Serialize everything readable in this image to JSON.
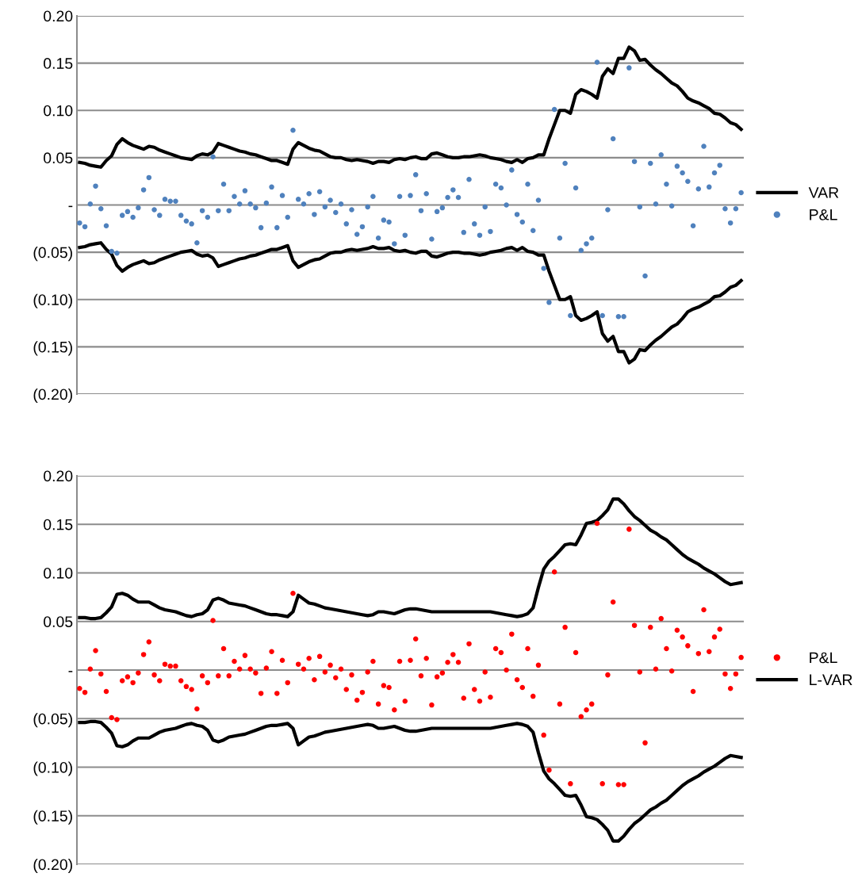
{
  "chart_data": [
    {
      "type": "scatter",
      "categories": [
        null,
        null,
        null,
        null,
        null,
        null,
        null,
        null,
        null,
        null,
        null,
        null,
        null,
        null,
        null,
        null,
        null,
        null,
        null,
        null,
        null,
        null,
        null,
        null,
        null,
        null,
        null,
        null,
        null,
        null,
        null,
        null,
        null,
        null,
        null,
        null,
        null,
        null,
        null,
        null,
        null,
        null,
        null,
        null,
        null,
        null,
        null,
        null,
        null,
        null,
        null,
        null,
        null,
        null,
        null,
        null,
        null,
        null,
        null,
        null,
        null,
        null,
        null,
        null,
        null,
        null,
        null,
        null,
        null,
        null,
        null,
        null,
        null,
        null,
        null,
        null,
        null,
        null,
        null,
        null,
        null,
        null,
        null,
        null,
        null,
        null,
        null,
        null,
        null,
        null,
        null,
        null,
        null,
        null,
        null,
        null,
        null,
        null,
        null,
        null,
        null,
        null,
        null,
        null,
        null,
        null,
        null,
        null,
        null,
        null,
        null,
        null,
        null,
        null,
        null,
        null,
        null,
        null,
        null,
        null,
        null,
        null,
        null,
        null,
        null
      ],
      "ylim": [
        -0.2,
        0.2
      ],
      "yticks": [
        {
          "value": -0.2,
          "label": "(0.20)"
        },
        {
          "value": -0.15,
          "label": "(0.15)"
        },
        {
          "value": -0.1,
          "label": "(0.10)"
        },
        {
          "value": -0.05,
          "label": "(0.05)"
        },
        {
          "value": 0,
          "label": "-"
        },
        {
          "value": 0.05,
          "label": "0.05"
        },
        {
          "value": 0.1,
          "label": "0.10"
        },
        {
          "value": 0.15,
          "label": "0.15"
        },
        {
          "value": 0.2,
          "label": "0.20"
        }
      ],
      "grid": "y",
      "legend": "right",
      "tick_labels": "y",
      "marker": "circle",
      "series": [
        {
          "type": "line",
          "name": "VAR",
          "color": "#000000",
          "line_style": "solid",
          "marker": "none",
          "values": [
            0.045,
            0.044,
            0.042,
            0.041,
            0.04,
            0.047,
            0.052,
            0.064,
            0.07,
            0.066,
            0.063,
            0.061,
            0.059,
            0.062,
            0.061,
            0.058,
            0.056,
            0.054,
            0.052,
            0.05,
            0.049,
            0.048,
            0.052,
            0.054,
            0.053,
            0.056,
            0.065,
            0.063,
            0.061,
            0.059,
            0.057,
            0.056,
            0.054,
            0.053,
            0.051,
            0.049,
            0.047,
            0.047,
            0.045,
            0.043,
            0.059,
            0.066,
            0.063,
            0.06,
            0.058,
            0.057,
            0.054,
            0.051,
            0.05,
            0.05,
            0.048,
            0.047,
            0.048,
            0.047,
            0.046,
            0.044,
            0.046,
            0.046,
            0.045,
            0.048,
            0.049,
            0.048,
            0.05,
            0.051,
            0.049,
            0.049,
            0.054,
            0.055,
            0.053,
            0.051,
            0.05,
            0.05,
            0.051,
            0.051,
            0.052,
            0.053,
            0.052,
            0.05,
            0.049,
            0.048,
            0.046,
            0.045,
            0.048,
            0.045,
            0.049,
            0.05,
            0.053,
            0.053,
            0.07,
            0.085,
            0.1,
            0.1,
            0.097,
            0.117,
            0.122,
            0.12,
            0.117,
            0.113,
            0.136,
            0.144,
            0.139,
            0.155,
            0.155,
            0.167,
            0.163,
            0.153,
            0.154,
            0.148,
            0.143,
            0.139,
            0.134,
            0.129,
            0.126,
            0.12,
            0.113,
            0.11,
            0.108,
            0.105,
            0.102,
            0.097,
            0.096,
            0.092,
            0.087,
            0.085,
            0.08
          ]
        },
        {
          "name": "P&L",
          "color": "#4f81bd",
          "values": [
            -0.019,
            -0.023,
            0.001,
            0.02,
            -0.004,
            -0.022,
            -0.049,
            -0.051,
            -0.011,
            -0.007,
            -0.013,
            -0.003,
            0.016,
            0.029,
            -0.005,
            -0.011,
            0.006,
            0.004,
            0.004,
            -0.011,
            -0.017,
            -0.02,
            -0.04,
            -0.006,
            -0.013,
            0.051,
            -0.006,
            0.022,
            -0.006,
            0.009,
            0.001,
            0.015,
            0.001,
            -0.003,
            -0.024,
            0.002,
            0.019,
            -0.024,
            0.01,
            -0.013,
            0.079,
            0.006,
            0.001,
            0.012,
            -0.01,
            0.014,
            -0.002,
            0.005,
            -0.008,
            0.001,
            -0.02,
            -0.005,
            -0.031,
            -0.023,
            -0.002,
            0.009,
            -0.035,
            -0.016,
            -0.018,
            -0.041,
            0.009,
            -0.032,
            0.01,
            0.032,
            -0.006,
            0.012,
            -0.036,
            -0.007,
            -0.003,
            0.008,
            0.016,
            0.008,
            -0.029,
            0.027,
            -0.02,
            -0.032,
            -0.002,
            -0.028,
            0.022,
            0.018,
            0.0,
            0.037,
            -0.01,
            -0.018,
            0.022,
            -0.027,
            0.005,
            -0.067,
            -0.103,
            0.101,
            -0.035,
            0.044,
            -0.117,
            0.018,
            -0.048,
            -0.041,
            -0.035,
            0.151,
            -0.117,
            -0.005,
            0.07,
            -0.118,
            -0.118,
            0.145,
            0.046,
            -0.002,
            -0.075,
            0.044,
            0.001,
            0.053,
            0.022,
            -0.001,
            0.041,
            0.034,
            0.025,
            -0.022,
            0.017,
            0.062,
            0.019,
            0.034,
            0.042,
            -0.004,
            -0.019,
            -0.004,
            0.013
          ]
        },
        {
          "type": "line",
          "color": "#000000",
          "line_style": "solid",
          "marker": "none",
          "values": [
            -0.045,
            -0.044,
            -0.042,
            -0.041,
            -0.04,
            -0.047,
            -0.052,
            -0.064,
            -0.07,
            -0.066,
            -0.063,
            -0.061,
            -0.059,
            -0.062,
            -0.061,
            -0.058,
            -0.056,
            -0.054,
            -0.052,
            -0.05,
            -0.049,
            -0.048,
            -0.052,
            -0.054,
            -0.053,
            -0.056,
            -0.065,
            -0.063,
            -0.061,
            -0.059,
            -0.057,
            -0.056,
            -0.054,
            -0.053,
            -0.051,
            -0.049,
            -0.047,
            -0.047,
            -0.045,
            -0.043,
            -0.059,
            -0.066,
            -0.063,
            -0.06,
            -0.058,
            -0.057,
            -0.054,
            -0.051,
            -0.05,
            -0.05,
            -0.048,
            -0.047,
            -0.048,
            -0.047,
            -0.046,
            -0.044,
            -0.046,
            -0.046,
            -0.045,
            -0.048,
            -0.049,
            -0.048,
            -0.05,
            -0.051,
            -0.049,
            -0.049,
            -0.054,
            -0.055,
            -0.053,
            -0.051,
            -0.05,
            -0.05,
            -0.051,
            -0.051,
            -0.052,
            -0.053,
            -0.052,
            -0.05,
            -0.049,
            -0.048,
            -0.046,
            -0.045,
            -0.048,
            -0.045,
            -0.049,
            -0.05,
            -0.053,
            -0.053,
            -0.07,
            -0.085,
            -0.1,
            -0.1,
            -0.097,
            -0.117,
            -0.122,
            -0.12,
            -0.117,
            -0.113,
            -0.136,
            -0.144,
            -0.139,
            -0.155,
            -0.155,
            -0.167,
            -0.163,
            -0.153,
            -0.154,
            -0.148,
            -0.143,
            -0.139,
            -0.134,
            -0.129,
            -0.126,
            -0.12,
            -0.113,
            -0.11,
            -0.108,
            -0.105,
            -0.102,
            -0.097,
            -0.096,
            -0.092,
            -0.087,
            -0.085,
            -0.08
          ]
        }
      ]
    },
    {
      "type": "scatter",
      "categories": [
        null,
        null,
        null,
        null,
        null,
        null,
        null,
        null,
        null,
        null,
        null,
        null,
        null,
        null,
        null,
        null,
        null,
        null,
        null,
        null,
        null,
        null,
        null,
        null,
        null,
        null,
        null,
        null,
        null,
        null,
        null,
        null,
        null,
        null,
        null,
        null,
        null,
        null,
        null,
        null,
        null,
        null,
        null,
        null,
        null,
        null,
        null,
        null,
        null,
        null,
        null,
        null,
        null,
        null,
        null,
        null,
        null,
        null,
        null,
        null,
        null,
        null,
        null,
        null,
        null,
        null,
        null,
        null,
        null,
        null,
        null,
        null,
        null,
        null,
        null,
        null,
        null,
        null,
        null,
        null,
        null,
        null,
        null,
        null,
        null,
        null,
        null,
        null,
        null,
        null,
        null,
        null,
        null,
        null,
        null,
        null,
        null,
        null,
        null,
        null,
        null,
        null,
        null,
        null,
        null,
        null,
        null,
        null,
        null,
        null,
        null,
        null,
        null,
        null,
        null,
        null,
        null,
        null,
        null,
        null,
        null,
        null,
        null,
        null,
        null
      ],
      "ylim": [
        -0.2,
        0.2
      ],
      "yticks": [
        {
          "value": -0.2,
          "label": "(0.20)"
        },
        {
          "value": -0.15,
          "label": "(0.15)"
        },
        {
          "value": -0.1,
          "label": "(0.10)"
        },
        {
          "value": -0.05,
          "label": "(0.05)"
        },
        {
          "value": 0,
          "label": "-"
        },
        {
          "value": 0.05,
          "label": "0.05"
        },
        {
          "value": 0.1,
          "label": "0.10"
        },
        {
          "value": 0.15,
          "label": "0.15"
        },
        {
          "value": 0.2,
          "label": "0.20"
        }
      ],
      "grid": "y",
      "legend": "right",
      "tick_labels": "y",
      "marker": "circle",
      "series": [
        {
          "name": "P&L",
          "color": "#ff0000",
          "values": [
            -0.019,
            -0.023,
            0.001,
            0.02,
            -0.004,
            -0.022,
            -0.049,
            -0.051,
            -0.011,
            -0.007,
            -0.013,
            -0.003,
            0.016,
            0.029,
            -0.005,
            -0.011,
            0.006,
            0.004,
            0.004,
            -0.011,
            -0.017,
            -0.02,
            -0.04,
            -0.006,
            -0.013,
            0.051,
            -0.006,
            0.022,
            -0.006,
            0.009,
            0.001,
            0.015,
            0.001,
            -0.003,
            -0.024,
            0.002,
            0.019,
            -0.024,
            0.01,
            -0.013,
            0.079,
            0.006,
            0.001,
            0.012,
            -0.01,
            0.014,
            -0.002,
            0.005,
            -0.008,
            0.001,
            -0.02,
            -0.005,
            -0.031,
            -0.023,
            -0.002,
            0.009,
            -0.035,
            -0.016,
            -0.018,
            -0.041,
            0.009,
            -0.032,
            0.01,
            0.032,
            -0.006,
            0.012,
            -0.036,
            -0.007,
            -0.003,
            0.008,
            0.016,
            0.008,
            -0.029,
            0.027,
            -0.02,
            -0.032,
            -0.002,
            -0.028,
            0.022,
            0.018,
            0.0,
            0.037,
            -0.01,
            -0.018,
            0.022,
            -0.027,
            0.005,
            -0.067,
            -0.103,
            0.101,
            -0.035,
            0.044,
            -0.117,
            0.018,
            -0.048,
            -0.041,
            -0.035,
            0.151,
            -0.117,
            -0.005,
            0.07,
            -0.118,
            -0.118,
            0.145,
            0.046,
            -0.002,
            -0.075,
            0.044,
            0.001,
            0.053,
            0.022,
            -0.001,
            0.041,
            0.034,
            0.025,
            -0.022,
            0.017,
            0.062,
            0.019,
            0.034,
            0.042,
            -0.004,
            -0.019,
            -0.004,
            0.013
          ]
        },
        {
          "type": "line",
          "name": "L-VAR",
          "color": "#000000",
          "line_style": "solid",
          "marker": "none",
          "values": [
            0.054,
            0.054,
            0.053,
            0.053,
            0.054,
            0.059,
            0.065,
            0.078,
            0.079,
            0.077,
            0.073,
            0.07,
            0.07,
            0.07,
            0.067,
            0.064,
            0.062,
            0.061,
            0.06,
            0.058,
            0.056,
            0.055,
            0.057,
            0.058,
            0.062,
            0.072,
            0.074,
            0.072,
            0.069,
            0.068,
            0.067,
            0.066,
            0.064,
            0.062,
            0.06,
            0.058,
            0.057,
            0.057,
            0.056,
            0.055,
            0.06,
            0.077,
            0.073,
            0.069,
            0.068,
            0.066,
            0.064,
            0.063,
            0.062,
            0.061,
            0.06,
            0.059,
            0.058,
            0.057,
            0.056,
            0.057,
            0.06,
            0.06,
            0.059,
            0.058,
            0.06,
            0.062,
            0.063,
            0.063,
            0.062,
            0.061,
            0.06,
            0.06,
            0.06,
            0.06,
            0.06,
            0.06,
            0.06,
            0.06,
            0.06,
            0.06,
            0.06,
            0.06,
            0.059,
            0.058,
            0.057,
            0.056,
            0.055,
            0.056,
            0.058,
            0.064,
            0.085,
            0.104,
            0.112,
            0.117,
            0.123,
            0.129,
            0.13,
            0.129,
            0.139,
            0.151,
            0.152,
            0.154,
            0.159,
            0.165,
            0.176,
            0.176,
            0.171,
            0.164,
            0.158,
            0.154,
            0.149,
            0.144,
            0.141,
            0.137,
            0.134,
            0.129,
            0.124,
            0.119,
            0.115,
            0.112,
            0.109,
            0.105,
            0.102,
            0.099,
            0.095,
            0.091,
            0.088,
            0.089,
            0.09
          ]
        },
        {
          "type": "line",
          "color": "#000000",
          "line_style": "solid",
          "marker": "none",
          "values": [
            -0.054,
            -0.054,
            -0.053,
            -0.053,
            -0.054,
            -0.059,
            -0.065,
            -0.078,
            -0.079,
            -0.077,
            -0.073,
            -0.07,
            -0.07,
            -0.07,
            -0.067,
            -0.064,
            -0.062,
            -0.061,
            -0.06,
            -0.058,
            -0.056,
            -0.055,
            -0.057,
            -0.058,
            -0.062,
            -0.072,
            -0.074,
            -0.072,
            -0.069,
            -0.068,
            -0.067,
            -0.066,
            -0.064,
            -0.062,
            -0.06,
            -0.058,
            -0.057,
            -0.057,
            -0.056,
            -0.055,
            -0.06,
            -0.077,
            -0.073,
            -0.069,
            -0.068,
            -0.066,
            -0.064,
            -0.063,
            -0.062,
            -0.061,
            -0.06,
            -0.059,
            -0.058,
            -0.057,
            -0.056,
            -0.057,
            -0.06,
            -0.06,
            -0.059,
            -0.058,
            -0.06,
            -0.062,
            -0.063,
            -0.063,
            -0.062,
            -0.061,
            -0.06,
            -0.06,
            -0.06,
            -0.06,
            -0.06,
            -0.06,
            -0.06,
            -0.06,
            -0.06,
            -0.06,
            -0.06,
            -0.06,
            -0.059,
            -0.058,
            -0.057,
            -0.056,
            -0.055,
            -0.056,
            -0.058,
            -0.064,
            -0.085,
            -0.104,
            -0.112,
            -0.117,
            -0.123,
            -0.129,
            -0.13,
            -0.129,
            -0.139,
            -0.151,
            -0.152,
            -0.154,
            -0.159,
            -0.165,
            -0.176,
            -0.176,
            -0.171,
            -0.164,
            -0.158,
            -0.154,
            -0.149,
            -0.144,
            -0.141,
            -0.137,
            -0.134,
            -0.129,
            -0.124,
            -0.119,
            -0.115,
            -0.112,
            -0.109,
            -0.105,
            -0.102,
            -0.099,
            -0.095,
            -0.091,
            -0.088,
            -0.089,
            -0.09
          ]
        }
      ]
    }
  ]
}
